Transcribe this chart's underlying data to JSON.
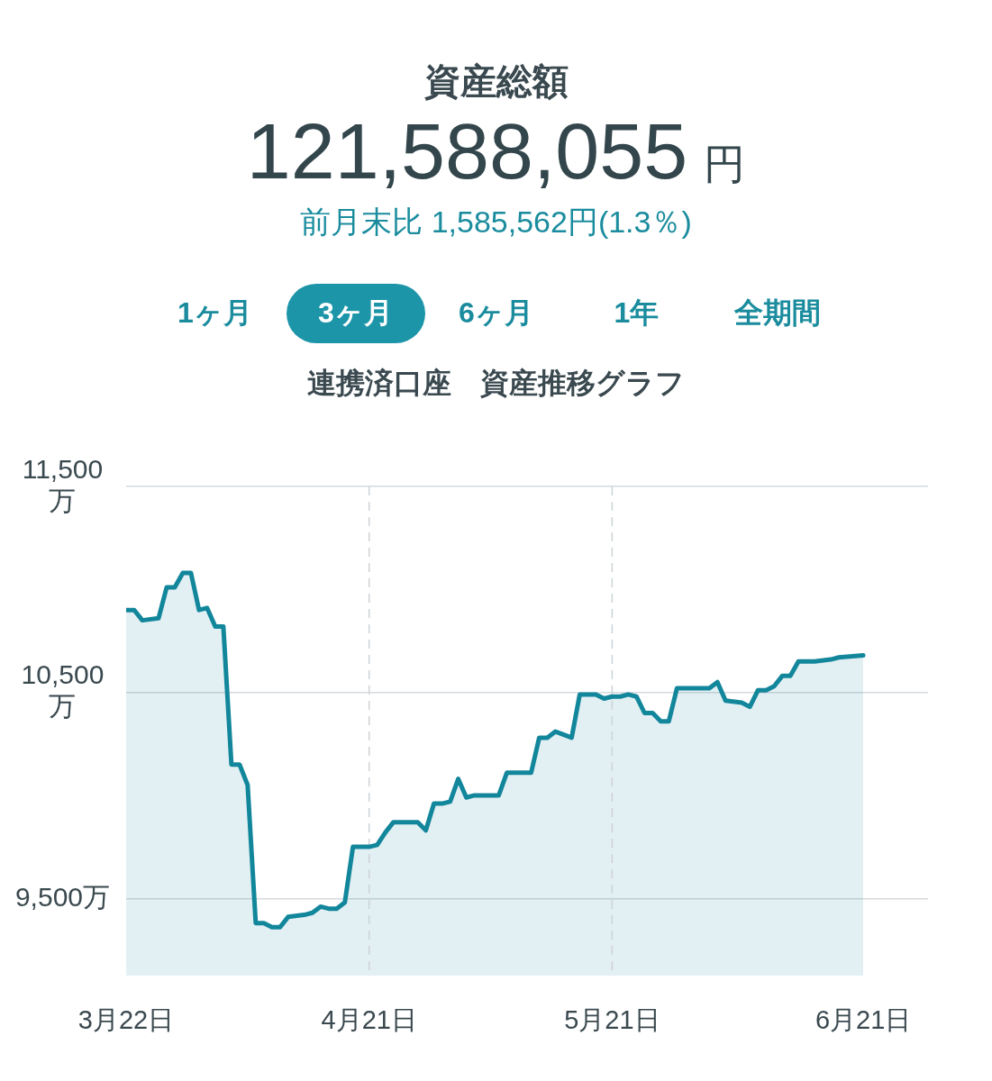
{
  "chart_data": [
    {
      "type": "other",
      "title": "資産総額",
      "subtitle": "121,588,055円",
      "annotations": [
        "前月末比 1,585,562円(1.3％)"
      ],
      "categories": [
        "1ヶ月",
        "3ヶ月",
        "6ヶ月",
        "1年",
        "全期間"
      ]
    },
    {
      "type": "area",
      "title": "連携済口座　資産推移グラフ",
      "x": [
        "--03-22",
        "--03-23",
        "--03-24",
        "--03-26",
        "--03-27",
        "--03-28",
        "--03-29",
        "--03-30",
        "--03-31",
        "--04-01",
        "--04-02",
        "--04-03",
        "--04-04",
        "--04-05",
        "--04-06",
        "--04-07",
        "--04-08",
        "--04-09",
        "--04-10",
        "--04-11",
        "--04-13",
        "--04-14",
        "--04-15",
        "--04-16",
        "--04-17",
        "--04-18",
        "--04-19",
        "--04-21",
        "--04-22",
        "--04-23",
        "--04-24",
        "--04-27",
        "--04-28",
        "--04-29",
        "--04-30",
        "--05-01",
        "--05-02",
        "--05-03",
        "--05-04",
        "--05-07",
        "--05-08",
        "--05-11",
        "--05-12",
        "--05-13",
        "--05-14",
        "--05-16",
        "--05-17",
        "--05-19",
        "--05-20",
        "--05-21",
        "--05-22",
        "--05-23",
        "--05-24",
        "--05-25",
        "--05-26",
        "--05-27",
        "--05-28",
        "--05-29",
        "--06-02",
        "--06-03",
        "--06-04",
        "--06-06",
        "--06-07",
        "--06-08",
        "--06-09",
        "--06-10",
        "--06-11",
        "--06-12",
        "--06-13",
        "--06-15",
        "--06-17",
        "--06-18",
        "--06-21"
      ],
      "values": [
        10900,
        10900,
        10850,
        10860,
        11010,
        11010,
        11080,
        11080,
        10900,
        10910,
        10820,
        10820,
        10150,
        10150,
        10050,
        9380,
        9380,
        9360,
        9360,
        9410,
        9420,
        9430,
        9460,
        9450,
        9450,
        9480,
        9750,
        9750,
        9760,
        9820,
        9870,
        9870,
        9830,
        9960,
        9960,
        9970,
        10080,
        9990,
        10000,
        10000,
        10110,
        10110,
        10280,
        10280,
        10310,
        10280,
        10490,
        10490,
        10470,
        10480,
        10480,
        10490,
        10480,
        10400,
        10400,
        10360,
        10360,
        10520,
        10520,
        10550,
        10460,
        10450,
        10430,
        10510,
        10510,
        10530,
        10580,
        10580,
        10650,
        10650,
        10660,
        10670,
        10680
      ],
      "color": "#12869b",
      "xlim": [
        "--03-22",
        "--06-29"
      ],
      "xticks": [
        {
          "value": "--03-22",
          "label": "3月22日"
        },
        {
          "value": "--04-21",
          "label": "4月21日"
        },
        {
          "value": "--05-21",
          "label": "5月21日"
        },
        {
          "value": "--06-21",
          "label": "6月21日"
        }
      ],
      "ylim": [
        9125,
        11500
      ],
      "yticks": [
        {
          "value": 9500,
          "label": "9,500万"
        },
        {
          "value": 10500,
          "label": "10,500万"
        },
        {
          "value": 11500,
          "label": "11,500万"
        }
      ],
      "grid": "y",
      "legend": false,
      "ref_lines": [
        {
          "axis": "x",
          "value": "--04-21",
          "color": "#cdd3d7",
          "line_style": "dashed"
        },
        {
          "axis": "x",
          "value": "--05-21",
          "color": "#cdd3d7",
          "line_style": "dashed"
        }
      ]
    }
  ]
}
